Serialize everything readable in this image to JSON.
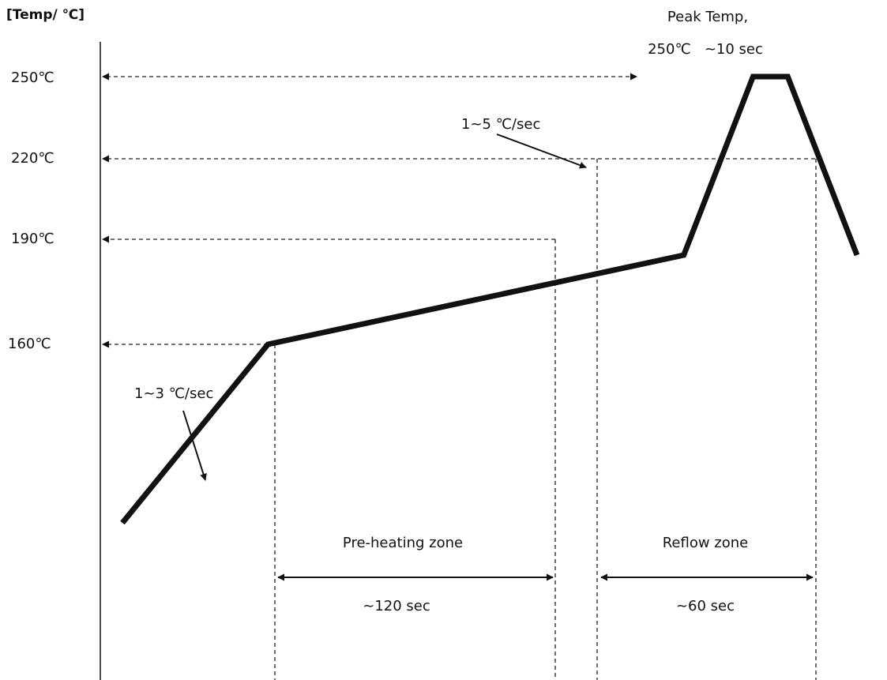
{
  "chart_data": {
    "type": "line",
    "title": "",
    "ylabel": "[Temp/ ℃]",
    "xlabel": "",
    "y_ticks": [
      {
        "value": 250,
        "label": "250℃"
      },
      {
        "value": 220,
        "label": "220℃"
      },
      {
        "value": 190,
        "label": "190℃"
      },
      {
        "value": 160,
        "label": "160℃"
      }
    ],
    "grid": false,
    "series": [
      {
        "points": [
          {
            "t": 0,
            "temp": 100
          },
          {
            "t": 42,
            "temp": 160
          },
          {
            "t": 162,
            "temp": 190
          },
          {
            "t": 182,
            "temp": 250
          },
          {
            "t": 192,
            "temp": 250
          },
          {
            "t": 212,
            "temp": 190
          }
        ]
      }
    ],
    "zones": [
      {
        "name": "Pre-heating zone",
        "duration": "~120 sec"
      },
      {
        "name": "Reflow zone",
        "duration": "~60 sec"
      }
    ],
    "annotations": [
      {
        "text": "Peak Temp,",
        "subtext": "250℃   ~10 sec"
      },
      {
        "text": "1~5 ℃/sec"
      },
      {
        "text": "1~3 ℃/sec"
      }
    ]
  }
}
